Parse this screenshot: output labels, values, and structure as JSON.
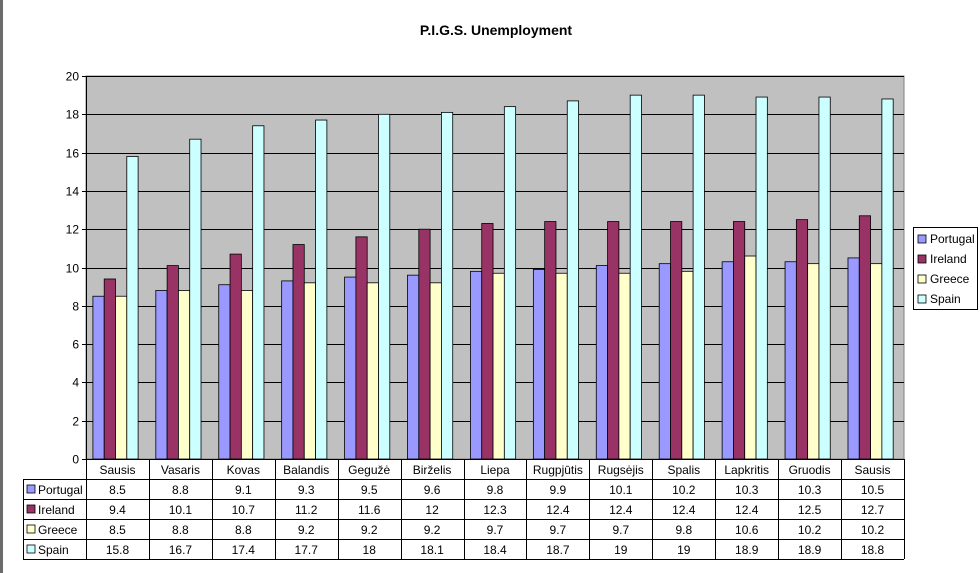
{
  "chart_data": {
    "type": "bar",
    "title": "P.I.G.S. Unemployment",
    "xlabel": "",
    "ylabel": "",
    "categories": [
      "Sausis",
      "Vasaris",
      "Kovas",
      "Balandis",
      "Gegužė",
      "Birželis",
      "Liepa",
      "Rugpjūtis",
      "Rugsėjis",
      "Spalis",
      "Lapkritis",
      "Gruodis",
      "Sausis"
    ],
    "ylim": [
      0,
      20
    ],
    "yticks": [
      0,
      2,
      4,
      6,
      8,
      10,
      12,
      14,
      16,
      18,
      20
    ],
    "grid": true,
    "legend_position": "right",
    "data_table": true,
    "plot_background": "#c0c0c0",
    "series": [
      {
        "name": "Portugal",
        "color": "#9999ff",
        "values": [
          8.5,
          8.8,
          9.1,
          9.3,
          9.5,
          9.6,
          9.8,
          9.9,
          10.1,
          10.2,
          10.3,
          10.3,
          10.5
        ]
      },
      {
        "name": "Ireland",
        "color": "#993366",
        "values": [
          9.4,
          10.1,
          10.7,
          11.2,
          11.6,
          12,
          12.3,
          12.4,
          12.4,
          12.4,
          12.4,
          12.5,
          12.7
        ]
      },
      {
        "name": "Greece",
        "color": "#ffffcc",
        "values": [
          8.5,
          8.8,
          8.8,
          9.2,
          9.2,
          9.2,
          9.7,
          9.7,
          9.7,
          9.8,
          10.6,
          10.2,
          10.2
        ]
      },
      {
        "name": "Spain",
        "color": "#ccffff",
        "values": [
          15.8,
          16.7,
          17.4,
          17.7,
          18,
          18.1,
          18.4,
          18.7,
          19,
          19,
          18.9,
          18.9,
          18.8
        ]
      }
    ]
  }
}
